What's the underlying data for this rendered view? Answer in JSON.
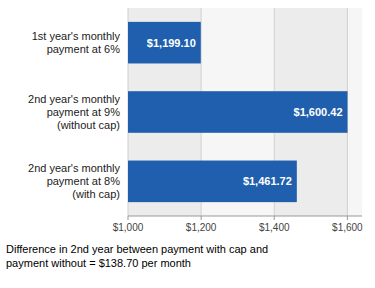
{
  "chart_data": {
    "type": "bar",
    "orientation": "horizontal",
    "categories": [
      "1st year's monthly\npayment at 6%",
      "2nd year's monthly\npayment at 9%\n(without cap)",
      "2nd year's monthly\npayment at 8%\n(with cap)"
    ],
    "values": [
      1199.1,
      1600.42,
      1461.72
    ],
    "value_labels": [
      "$1,199.10",
      "$1,600.42",
      "$1,461.72"
    ],
    "data_labels": true,
    "color": "#1f5fad",
    "xlim": [
      1000,
      1640
    ],
    "xticks": [
      {
        "value": 1000,
        "label": "$1,000"
      },
      {
        "value": 1200,
        "label": "$1,200"
      },
      {
        "value": 1400,
        "label": "$1,400"
      },
      {
        "value": 1600,
        "label": "$1,600"
      }
    ],
    "grid": true,
    "annotations": [
      "Difference in 2nd year between payment with cap and\npayment without = $138.70 per month"
    ]
  }
}
